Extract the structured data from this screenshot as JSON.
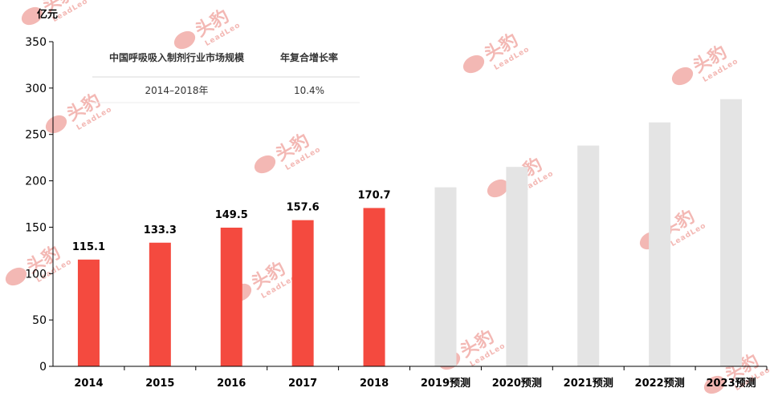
{
  "chart_data": {
    "type": "bar",
    "unit_label": "亿元",
    "yticks": [
      0,
      50,
      100,
      150,
      200,
      250,
      300,
      350
    ],
    "ylim": [
      0,
      350
    ],
    "categories": [
      "2014",
      "2015",
      "2016",
      "2017",
      "2018",
      "2019预测",
      "2020预测",
      "2021预测",
      "2022预测",
      "2023预测"
    ],
    "values": [
      115.1,
      133.3,
      149.5,
      157.6,
      170.7,
      193,
      215,
      238,
      263,
      288
    ],
    "data_labels": [
      "115.1",
      "133.3",
      "149.5",
      "157.6",
      "170.7",
      "",
      "",
      "",
      "",
      ""
    ],
    "actual_count": 5,
    "colors": {
      "actual": "#f44a3f",
      "forecast": "#e4e4e4",
      "axis": "#000000"
    },
    "grid": false
  },
  "table": {
    "header": [
      "中国呼吸吸入制剂行业市场规模",
      "年复合增长率"
    ],
    "row": [
      "2014–2018年",
      "10.4%"
    ]
  },
  "watermark": {
    "text": "头豹",
    "sub": "LeadLeo"
  }
}
